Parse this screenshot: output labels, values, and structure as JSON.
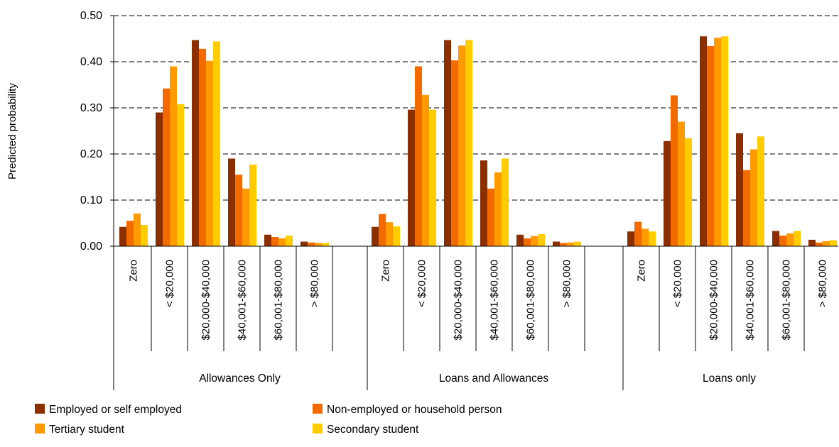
{
  "chart_data": {
    "type": "bar",
    "ylabel": "Predicted probability",
    "ylim": [
      0,
      0.5
    ],
    "yticks": [
      "0.00",
      "0.10",
      "0.20",
      "0.30",
      "0.40",
      "0.50"
    ],
    "grid": "horizontal dashed",
    "legend_position": "bottom",
    "groups": [
      "Allowances Only",
      "Loans and Allowances",
      "Loans only"
    ],
    "categories": [
      "Zero",
      "< $20,000",
      "$20,000-$40,000",
      "$40,001-$60,000",
      "$60,001-$80,000",
      "> $80,000"
    ],
    "series": [
      {
        "name": "Employed or self employed",
        "color": "#8B2E00",
        "values": [
          [
            0.042,
            0.29,
            0.447,
            0.19,
            0.025,
            0.01
          ],
          [
            0.042,
            0.296,
            0.447,
            0.186,
            0.025,
            0.01
          ],
          [
            0.032,
            0.228,
            0.455,
            0.245,
            0.033,
            0.014
          ]
        ]
      },
      {
        "name": "Non-employed or household person",
        "color": "#F26B00",
        "values": [
          [
            0.055,
            0.342,
            0.428,
            0.155,
            0.02,
            0.008
          ],
          [
            0.07,
            0.39,
            0.403,
            0.125,
            0.017,
            0.007
          ],
          [
            0.053,
            0.327,
            0.434,
            0.165,
            0.023,
            0.008
          ]
        ]
      },
      {
        "name": "Tertiary student",
        "color": "#FF9A00",
        "values": [
          [
            0.071,
            0.39,
            0.402,
            0.125,
            0.017,
            0.007
          ],
          [
            0.052,
            0.328,
            0.435,
            0.16,
            0.022,
            0.008
          ],
          [
            0.038,
            0.27,
            0.452,
            0.21,
            0.028,
            0.011
          ]
        ]
      },
      {
        "name": "Secondary student",
        "color": "#FFCC00",
        "values": [
          [
            0.046,
            0.308,
            0.444,
            0.177,
            0.023,
            0.007
          ],
          [
            0.043,
            0.296,
            0.447,
            0.19,
            0.026,
            0.01
          ],
          [
            0.032,
            0.234,
            0.455,
            0.238,
            0.033,
            0.013
          ]
        ]
      }
    ]
  }
}
